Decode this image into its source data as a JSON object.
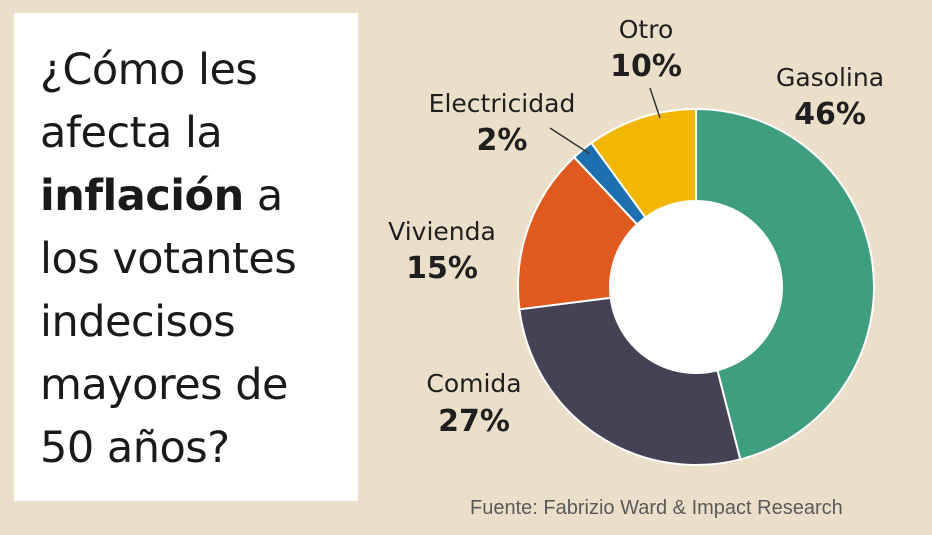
{
  "title": {
    "line1": "¿Cómo les",
    "line2": "afecta la",
    "line3_bold": "inflación",
    "line3_rest": " a",
    "line4": "los votantes",
    "line5": "indecisos",
    "line6": "mayores de",
    "line7": "50 años?"
  },
  "source": "Fuente: Fabrizio Ward & Impact Research",
  "chart_data": {
    "type": "pie",
    "donut": true,
    "slices": [
      {
        "name": "Gasolina",
        "value": 46,
        "label": "46%",
        "color": "#3f9e80"
      },
      {
        "name": "Comida",
        "value": 27,
        "label": "27%",
        "color": "#464255"
      },
      {
        "name": "Vivienda",
        "value": 15,
        "label": "15%",
        "color": "#e05a1f"
      },
      {
        "name": "Electricidad",
        "value": 2,
        "label": "2%",
        "color": "#1d6fb0"
      },
      {
        "name": "Otro",
        "value": 10,
        "label": "10%",
        "color": "#f2b705"
      }
    ]
  }
}
